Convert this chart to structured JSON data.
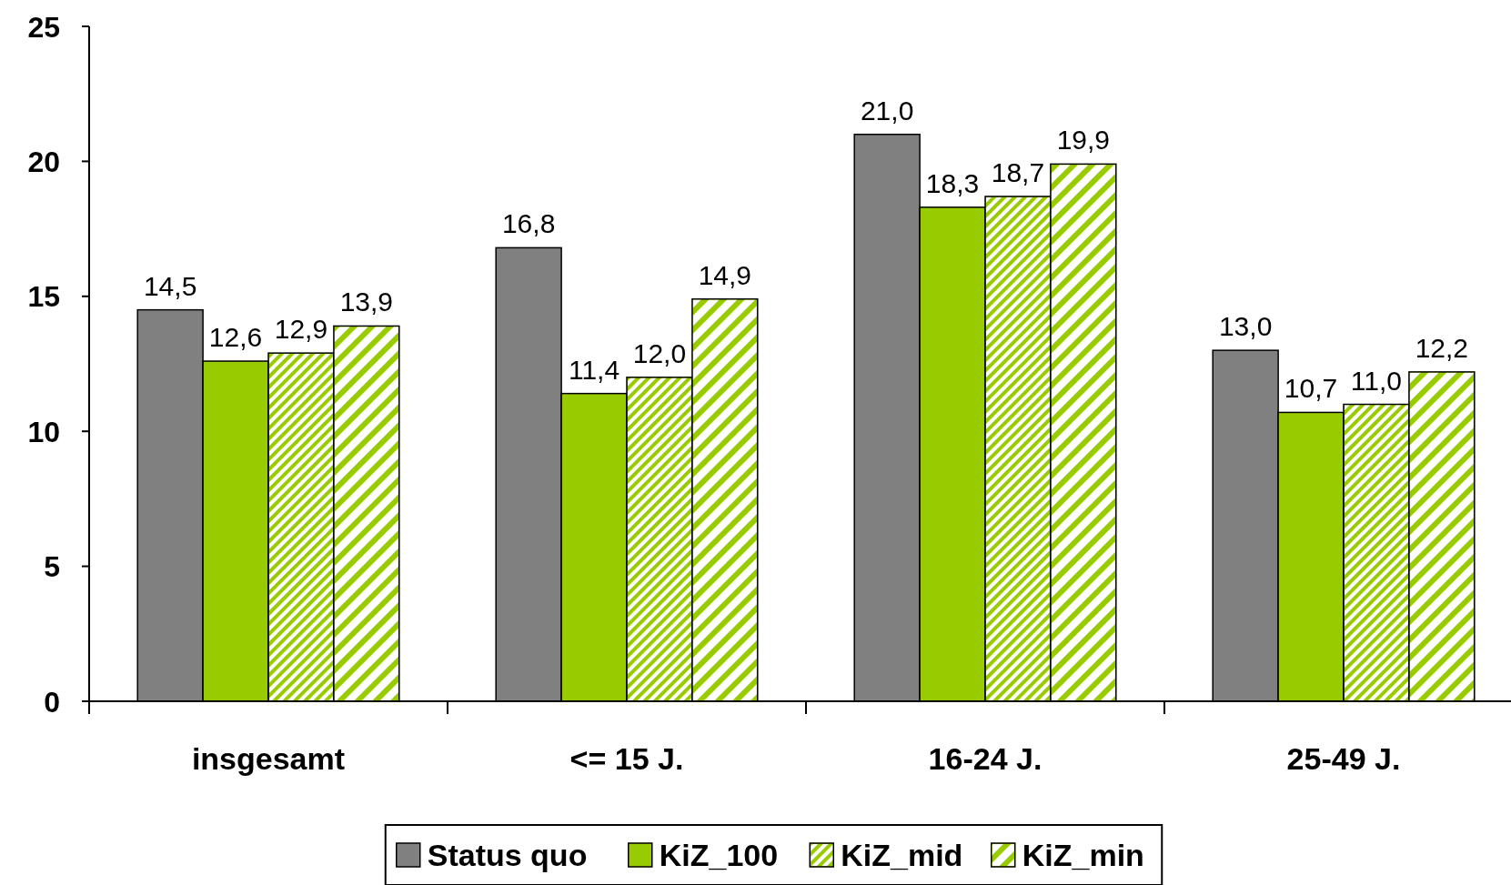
{
  "chart_data": {
    "type": "bar",
    "categories": [
      "insgesamt",
      "<= 15 J.",
      "16-24 J.",
      "25-49 J."
    ],
    "series": [
      {
        "name": "Status quo",
        "color": "#808080",
        "values": [
          14.5,
          16.8,
          21.0,
          13.0
        ],
        "value_labels": [
          "14,5",
          "16,8",
          "21,0",
          "13,0"
        ]
      },
      {
        "name": "KiZ_100",
        "color": "#99cc00",
        "values": [
          12.6,
          11.4,
          18.3,
          10.7
        ],
        "value_labels": [
          "12,6",
          "11,4",
          "18,3",
          "10,7"
        ]
      },
      {
        "name": "KiZ_mid",
        "color": "#99cc00",
        "values": [
          12.9,
          12.0,
          18.7,
          11.0
        ],
        "value_labels": [
          "12,9",
          "12,0",
          "18,7",
          "11,0"
        ]
      },
      {
        "name": "KiZ_min",
        "color": "#99cc00",
        "values": [
          13.9,
          14.9,
          19.9,
          12.2
        ],
        "value_labels": [
          "13,9",
          "14,9",
          "19,9",
          "12,2"
        ]
      }
    ],
    "ylim": [
      0,
      25
    ],
    "yticks": [
      0,
      5,
      10,
      15,
      20,
      25
    ],
    "grid": false,
    "legend": "bottom"
  }
}
